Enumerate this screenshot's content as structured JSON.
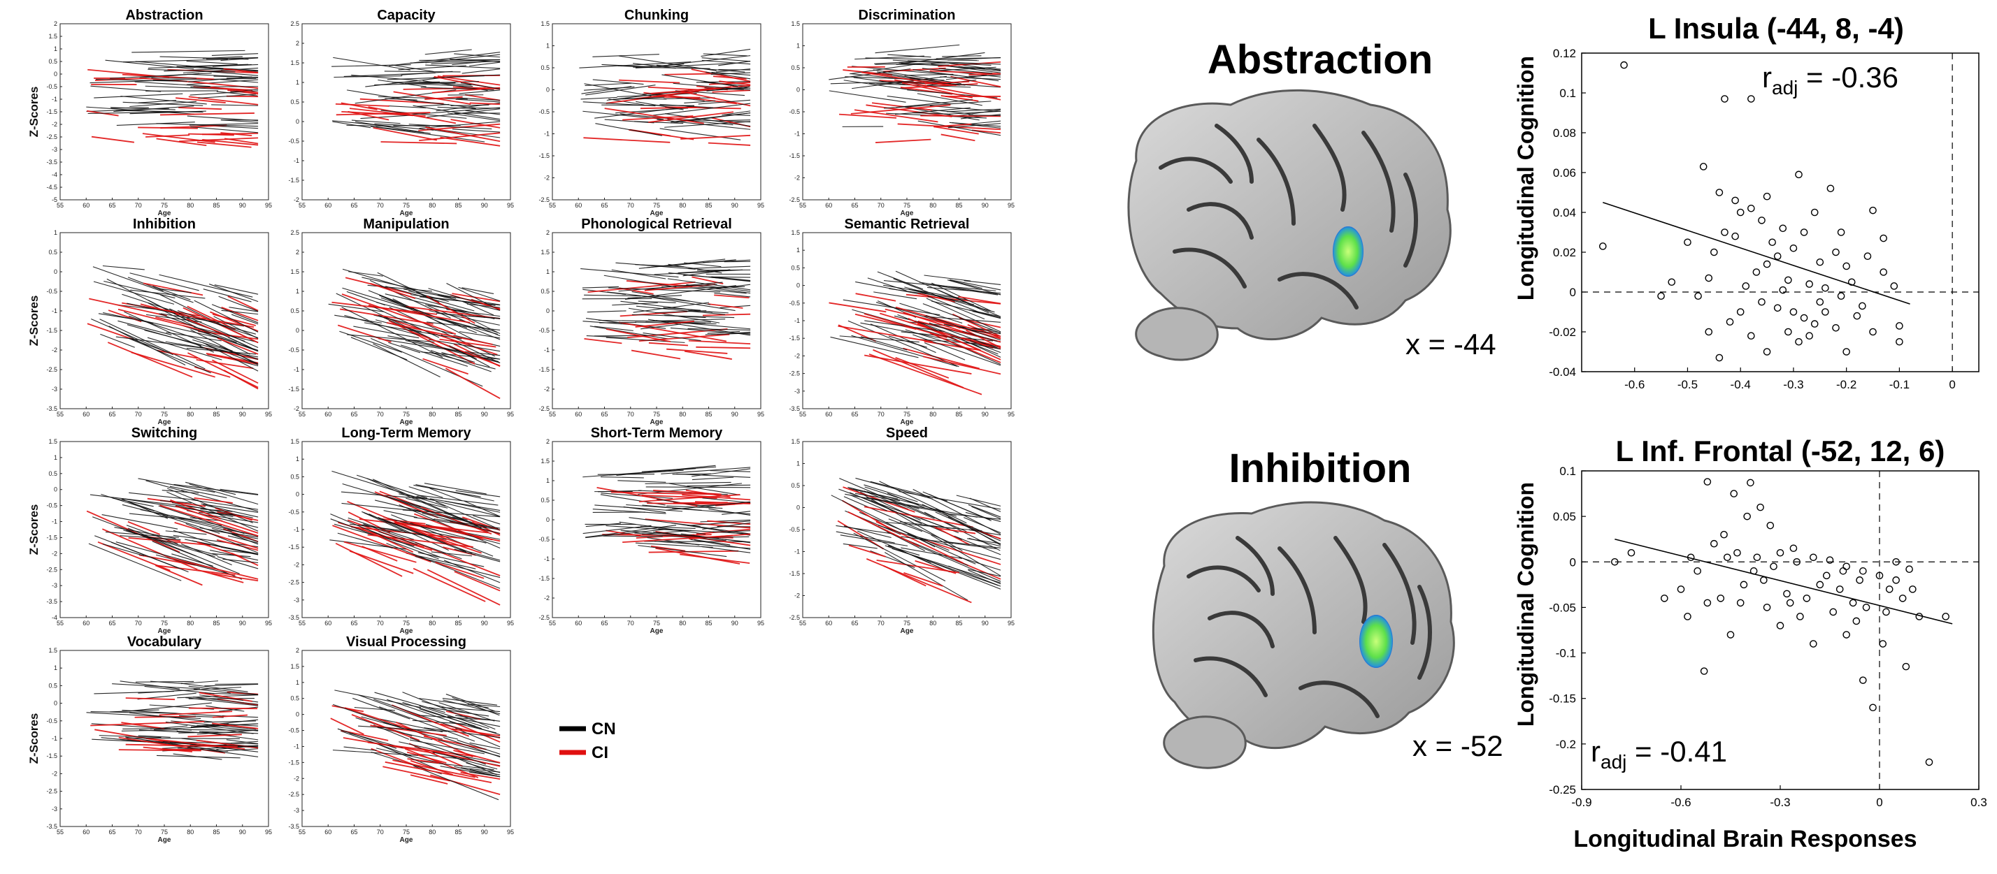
{
  "left_panel": {
    "y_axis_label": "Z-Scores",
    "x_axis_label": "Age",
    "legend": [
      {
        "label": "CN",
        "color": "#000000"
      },
      {
        "label": "CI",
        "color": "#e01010"
      }
    ]
  },
  "right_panel": {
    "x_axis_label": "Longitudinal Brain Responses",
    "y_axis_label": "Longitudinal Cognition",
    "brains": [
      {
        "domain": "Abstraction",
        "coordinate": "x = -44"
      },
      {
        "domain": "Inhibition",
        "coordinate": "x = -52"
      }
    ]
  },
  "chart_data": [
    {
      "type": "line",
      "title": "Abstraction",
      "xlabel": "Age",
      "ylabel": "Z-Scores",
      "xlim": [
        55,
        95
      ],
      "ylim": [
        -5,
        2
      ],
      "x_ticks": [
        "55",
        "60",
        "65",
        "70",
        "75",
        "80",
        "85",
        "90",
        "95"
      ],
      "y_ticks": [
        "2",
        "1.5",
        "1",
        "0.5",
        "0",
        "-0.5",
        "-1",
        "-1.5",
        "-2",
        "-2.5",
        "-3",
        "-3.5",
        "-4",
        "-4.5",
        "-5"
      ]
    },
    {
      "type": "line",
      "title": "Capacity",
      "xlabel": "Age",
      "xlim": [
        55,
        95
      ],
      "ylim": [
        -2,
        2.5
      ],
      "x_ticks": [
        "55",
        "60",
        "65",
        "70",
        "75",
        "80",
        "85",
        "90",
        "95"
      ],
      "y_ticks": [
        "2.5",
        "2",
        "1.5",
        "1",
        "0.5",
        "0",
        "-0.5",
        "-1",
        "-1.5",
        "-2"
      ]
    },
    {
      "type": "line",
      "title": "Chunking",
      "xlabel": "Age",
      "xlim": [
        55,
        95
      ],
      "ylim": [
        -2.5,
        1.5
      ],
      "x_ticks": [
        "55",
        "60",
        "65",
        "70",
        "75",
        "80",
        "85",
        "90",
        "95"
      ],
      "y_ticks": [
        "1.5",
        "1",
        "0.5",
        "0",
        "-0.5",
        "-1",
        "-1.5",
        "-2",
        "-2.5"
      ]
    },
    {
      "type": "line",
      "title": "Discrimination",
      "xlabel": "Age",
      "xlim": [
        55,
        95
      ],
      "ylim": [
        -2.5,
        1.5
      ],
      "x_ticks": [
        "55",
        "60",
        "65",
        "70",
        "75",
        "80",
        "85",
        "90",
        "95"
      ],
      "y_ticks": [
        "1.5",
        "1",
        "0.5",
        "0",
        "-0.5",
        "-1",
        "-1.5",
        "-2",
        "-2.5"
      ]
    },
    {
      "type": "line",
      "title": "Inhibition",
      "xlabel": "Age",
      "ylabel": "Z-Scores",
      "xlim": [
        55,
        95
      ],
      "ylim": [
        -3.5,
        1
      ],
      "x_ticks": [
        "55",
        "60",
        "65",
        "70",
        "75",
        "80",
        "85",
        "90",
        "95"
      ],
      "y_ticks": [
        "1",
        "0.5",
        "0",
        "-0.5",
        "-1",
        "-1.5",
        "-2",
        "-2.5",
        "-3",
        "-3.5"
      ]
    },
    {
      "type": "line",
      "title": "Manipulation",
      "xlabel": "Age",
      "xlim": [
        55,
        95
      ],
      "ylim": [
        -2,
        2.5
      ],
      "x_ticks": [
        "55",
        "60",
        "65",
        "70",
        "75",
        "80",
        "85",
        "90",
        "95"
      ],
      "y_ticks": [
        "2.5",
        "2",
        "1.5",
        "1",
        "0.5",
        "0",
        "-0.5",
        "-1",
        "-1.5",
        "-2"
      ]
    },
    {
      "type": "line",
      "title": "Phonological Retrieval",
      "xlabel": "Age",
      "xlim": [
        55,
        95
      ],
      "ylim": [
        -2.5,
        2
      ],
      "x_ticks": [
        "55",
        "60",
        "65",
        "70",
        "75",
        "80",
        "85",
        "90",
        "95"
      ],
      "y_ticks": [
        "2",
        "1.5",
        "1",
        "0.5",
        "0",
        "-0.5",
        "-1",
        "-1.5",
        "-2",
        "-2.5"
      ]
    },
    {
      "type": "line",
      "title": "Semantic Retrieval",
      "xlabel": "Age",
      "xlim": [
        55,
        95
      ],
      "ylim": [
        -3.5,
        1.5
      ],
      "x_ticks": [
        "55",
        "60",
        "65",
        "70",
        "75",
        "80",
        "85",
        "90",
        "95"
      ],
      "y_ticks": [
        "1.5",
        "1",
        "0.5",
        "0",
        "-0.5",
        "-1",
        "-1.5",
        "-2",
        "-2.5",
        "-3",
        "-3.5"
      ]
    },
    {
      "type": "line",
      "title": "Switching",
      "xlabel": "Age",
      "ylabel": "Z-Scores",
      "xlim": [
        55,
        95
      ],
      "ylim": [
        -4,
        1.5
      ],
      "x_ticks": [
        "55",
        "60",
        "65",
        "70",
        "75",
        "80",
        "85",
        "90",
        "95"
      ],
      "y_ticks": [
        "1.5",
        "1",
        "0.5",
        "0",
        "-0.5",
        "-1",
        "-1.5",
        "-2",
        "-2.5",
        "-3",
        "-3.5",
        "-4"
      ]
    },
    {
      "type": "line",
      "title": "Long-Term Memory",
      "xlabel": "Age",
      "xlim": [
        55,
        95
      ],
      "ylim": [
        -3.5,
        1.5
      ],
      "x_ticks": [
        "55",
        "60",
        "65",
        "70",
        "75",
        "80",
        "85",
        "90",
        "95"
      ],
      "y_ticks": [
        "1.5",
        "1",
        "0.5",
        "0",
        "-0.5",
        "-1",
        "-1.5",
        "-2",
        "-2.5",
        "-3",
        "-3.5"
      ]
    },
    {
      "type": "line",
      "title": "Short-Term Memory",
      "xlabel": "Age",
      "xlim": [
        55,
        95
      ],
      "ylim": [
        -2.5,
        2
      ],
      "x_ticks": [
        "55",
        "60",
        "65",
        "70",
        "75",
        "80",
        "85",
        "90",
        "95"
      ],
      "y_ticks": [
        "2",
        "1.5",
        "1",
        "0.5",
        "0",
        "-0.5",
        "-1",
        "-1.5",
        "-2",
        "-2.5"
      ]
    },
    {
      "type": "line",
      "title": "Speed",
      "xlabel": "Age",
      "xlim": [
        55,
        95
      ],
      "ylim": [
        -2.5,
        1.5
      ],
      "x_ticks": [
        "55",
        "60",
        "65",
        "70",
        "75",
        "80",
        "85",
        "90",
        "95"
      ],
      "y_ticks": [
        "1.5",
        "1",
        "0.5",
        "0",
        "-0.5",
        "-1",
        "-1.5",
        "-2",
        "-2.5"
      ]
    },
    {
      "type": "line",
      "title": "Vocabulary",
      "xlabel": "Age",
      "ylabel": "Z-Scores",
      "xlim": [
        55,
        95
      ],
      "ylim": [
        -3.5,
        1.5
      ],
      "x_ticks": [
        "55",
        "60",
        "65",
        "70",
        "75",
        "80",
        "85",
        "90",
        "95"
      ],
      "y_ticks": [
        "1.5",
        "1",
        "0.5",
        "0",
        "-0.5",
        "-1",
        "-1.5",
        "-2",
        "-2.5",
        "-3",
        "-3.5"
      ]
    },
    {
      "type": "line",
      "title": "Visual Processing",
      "xlabel": "Age",
      "xlim": [
        55,
        95
      ],
      "ylim": [
        -3.5,
        2
      ],
      "x_ticks": [
        "55",
        "60",
        "65",
        "70",
        "75",
        "80",
        "85",
        "90",
        "95"
      ],
      "y_ticks": [
        "2",
        "1.5",
        "1",
        "0.5",
        "0",
        "-0.5",
        "-1",
        "-1.5",
        "-2",
        "-2.5",
        "-3",
        "-3.5"
      ]
    },
    {
      "type": "scatter",
      "title": "L Insula (-44, 8, -4)",
      "xlabel": "Longitudinal Brain Responses",
      "ylabel": "Longitudinal Cognition",
      "xlim": [
        -0.7,
        0.05
      ],
      "ylim": [
        -0.04,
        0.12
      ],
      "x_ticks": [
        "-0.6",
        "-0.5",
        "-0.4",
        "-0.3",
        "-0.2",
        "-0.1",
        "0"
      ],
      "y_ticks": [
        "0.12",
        "0.1",
        "0.08",
        "0.06",
        "0.04",
        "0.02",
        "0",
        "-0.02",
        "-0.04"
      ],
      "stat_label": "r",
      "stat_sub": "adj",
      "stat_value": " = -0.36",
      "fit": {
        "x0": -0.66,
        "y0": 0.045,
        "x1": -0.08,
        "y1": -0.006
      },
      "points": [
        [
          -0.62,
          0.114
        ],
        [
          -0.43,
          0.097
        ],
        [
          -0.38,
          0.097
        ],
        [
          -0.66,
          0.023
        ],
        [
          -0.47,
          0.063
        ],
        [
          -0.44,
          0.05
        ],
        [
          -0.41,
          0.046
        ],
        [
          -0.4,
          0.04
        ],
        [
          -0.43,
          0.03
        ],
        [
          -0.5,
          0.025
        ],
        [
          -0.45,
          0.02
        ],
        [
          -0.46,
          0.007
        ],
        [
          -0.35,
          0.048
        ],
        [
          -0.38,
          0.042
        ],
        [
          -0.36,
          0.036
        ],
        [
          -0.32,
          0.032
        ],
        [
          -0.28,
          0.03
        ],
        [
          -0.34,
          0.025
        ],
        [
          -0.3,
          0.022
        ],
        [
          -0.33,
          0.018
        ],
        [
          -0.25,
          0.015
        ],
        [
          -0.22,
          0.02
        ],
        [
          -0.2,
          0.013
        ],
        [
          -0.37,
          0.01
        ],
        [
          -0.31,
          0.006
        ],
        [
          -0.27,
          0.004
        ],
        [
          -0.24,
          0.002
        ],
        [
          -0.21,
          -0.002
        ],
        [
          -0.19,
          0.005
        ],
        [
          -0.16,
          0.018
        ],
        [
          -0.13,
          0.01
        ],
        [
          -0.11,
          0.003
        ],
        [
          -0.36,
          -0.005
        ],
        [
          -0.33,
          -0.008
        ],
        [
          -0.3,
          -0.01
        ],
        [
          -0.28,
          -0.013
        ],
        [
          -0.26,
          -0.016
        ],
        [
          -0.24,
          -0.01
        ],
        [
          -0.22,
          -0.018
        ],
        [
          -0.18,
          -0.012
        ],
        [
          -0.15,
          -0.02
        ],
        [
          -0.1,
          -0.017
        ],
        [
          -0.1,
          -0.025
        ],
        [
          -0.42,
          -0.015
        ],
        [
          -0.44,
          -0.033
        ],
        [
          -0.35,
          -0.03
        ],
        [
          -0.38,
          -0.022
        ],
        [
          -0.29,
          -0.025
        ],
        [
          -0.2,
          -0.03
        ],
        [
          -0.48,
          -0.002
        ],
        [
          -0.53,
          0.005
        ],
        [
          -0.39,
          0.003
        ],
        [
          -0.41,
          0.028
        ],
        [
          -0.29,
          0.059
        ],
        [
          -0.23,
          0.052
        ],
        [
          -0.15,
          0.041
        ],
        [
          -0.13,
          0.027
        ],
        [
          -0.35,
          0.014
        ],
        [
          -0.32,
          0.001
        ],
        [
          -0.25,
          -0.005
        ],
        [
          -0.17,
          -0.007
        ],
        [
          -0.31,
          -0.02
        ],
        [
          -0.27,
          -0.022
        ],
        [
          -0.4,
          -0.01
        ],
        [
          -0.46,
          -0.02
        ],
        [
          -0.55,
          -0.002
        ],
        [
          -0.21,
          0.03
        ],
        [
          -0.26,
          0.04
        ]
      ]
    },
    {
      "type": "scatter",
      "title": "L Inf. Frontal (-52, 12, 6)",
      "xlabel": "Longitudinal Brain Responses",
      "ylabel": "Longitudinal Cognition",
      "xlim": [
        -0.9,
        0.3
      ],
      "ylim": [
        -0.25,
        0.1
      ],
      "x_ticks": [
        "-0.9",
        "-0.6",
        "-0.3",
        "0",
        "0.3"
      ],
      "y_ticks": [
        "0.1",
        "0.05",
        "0",
        "-0.05",
        "-0.1",
        "-0.15",
        "-0.2",
        "-0.25"
      ],
      "stat_label": "r",
      "stat_sub": "adj",
      "stat_value": " = -0.41",
      "fit": {
        "x0": -0.8,
        "y0": 0.025,
        "x1": 0.22,
        "y1": -0.068
      },
      "points": [
        [
          -0.52,
          0.088
        ],
        [
          -0.39,
          0.087
        ],
        [
          -0.44,
          0.075
        ],
        [
          -0.36,
          0.06
        ],
        [
          -0.4,
          0.05
        ],
        [
          -0.33,
          0.04
        ],
        [
          -0.47,
          0.03
        ],
        [
          -0.5,
          0.02
        ],
        [
          -0.43,
          0.01
        ],
        [
          -0.37,
          0.005
        ],
        [
          -0.3,
          0.01
        ],
        [
          -0.2,
          0.005
        ],
        [
          -0.25,
          0.0
        ],
        [
          -0.15,
          0.002
        ],
        [
          -0.1,
          -0.005
        ],
        [
          -0.05,
          -0.01
        ],
        [
          0.0,
          -0.015
        ],
        [
          0.05,
          -0.02
        ],
        [
          0.1,
          -0.03
        ],
        [
          -0.55,
          -0.01
        ],
        [
          -0.6,
          -0.03
        ],
        [
          -0.48,
          -0.04
        ],
        [
          -0.42,
          -0.045
        ],
        [
          -0.35,
          -0.02
        ],
        [
          -0.28,
          -0.035
        ],
        [
          -0.22,
          -0.04
        ],
        [
          -0.18,
          -0.025
        ],
        [
          -0.12,
          -0.03
        ],
        [
          -0.08,
          -0.045
        ],
        [
          -0.04,
          -0.05
        ],
        [
          0.02,
          -0.055
        ],
        [
          0.07,
          -0.04
        ],
        [
          0.12,
          -0.06
        ],
        [
          0.2,
          -0.06
        ],
        [
          -0.8,
          0.0
        ],
        [
          -0.75,
          0.01
        ],
        [
          -0.65,
          -0.04
        ],
        [
          -0.58,
          -0.06
        ],
        [
          -0.53,
          -0.12
        ],
        [
          -0.45,
          -0.08
        ],
        [
          -0.3,
          -0.07
        ],
        [
          -0.2,
          -0.09
        ],
        [
          -0.1,
          -0.08
        ],
        [
          -0.05,
          -0.13
        ],
        [
          -0.02,
          -0.16
        ],
        [
          0.08,
          -0.115
        ],
        [
          0.15,
          -0.22
        ],
        [
          -0.38,
          -0.01
        ],
        [
          -0.32,
          -0.005
        ],
        [
          -0.26,
          0.015
        ],
        [
          -0.16,
          -0.015
        ],
        [
          -0.06,
          -0.02
        ],
        [
          0.03,
          -0.03
        ],
        [
          0.09,
          -0.008
        ],
        [
          -0.14,
          -0.055
        ],
        [
          -0.24,
          -0.06
        ],
        [
          -0.46,
          0.005
        ],
        [
          -0.41,
          -0.025
        ],
        [
          -0.52,
          -0.045
        ],
        [
          -0.11,
          -0.01
        ],
        [
          0.05,
          0.0
        ],
        [
          -0.27,
          -0.045
        ],
        [
          -0.07,
          -0.065
        ],
        [
          0.01,
          -0.09
        ],
        [
          -0.57,
          0.005
        ],
        [
          -0.34,
          -0.05
        ]
      ]
    }
  ]
}
